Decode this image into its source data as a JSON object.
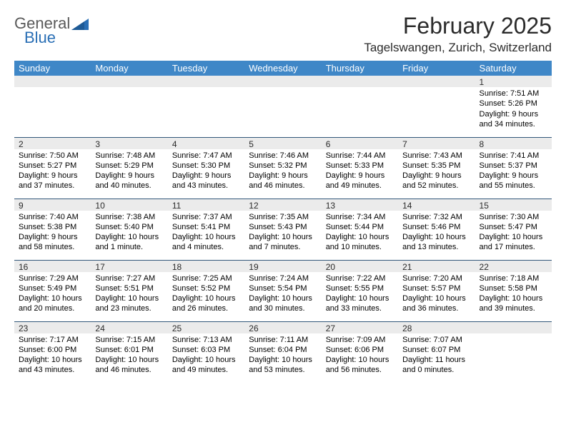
{
  "brand": {
    "line1": "General",
    "line2": "Blue"
  },
  "title": "February 2025",
  "location": "Tagelswangen, Zurich, Switzerland",
  "colors": {
    "header_bg": "#3f87c7",
    "header_fg": "#ffffff",
    "row_rule": "#32577a",
    "daynum_bg": "#ebebeb",
    "brand_gray": "#5a5a5a",
    "brand_blue": "#2a6fb5"
  },
  "weekdays": [
    "Sunday",
    "Monday",
    "Tuesday",
    "Wednesday",
    "Thursday",
    "Friday",
    "Saturday"
  ],
  "weeks": [
    [
      {
        "n": "",
        "lines": []
      },
      {
        "n": "",
        "lines": []
      },
      {
        "n": "",
        "lines": []
      },
      {
        "n": "",
        "lines": []
      },
      {
        "n": "",
        "lines": []
      },
      {
        "n": "",
        "lines": []
      },
      {
        "n": "1",
        "lines": [
          "Sunrise: 7:51 AM",
          "Sunset: 5:26 PM",
          "Daylight: 9 hours and 34 minutes."
        ]
      }
    ],
    [
      {
        "n": "2",
        "lines": [
          "Sunrise: 7:50 AM",
          "Sunset: 5:27 PM",
          "Daylight: 9 hours and 37 minutes."
        ]
      },
      {
        "n": "3",
        "lines": [
          "Sunrise: 7:48 AM",
          "Sunset: 5:29 PM",
          "Daylight: 9 hours and 40 minutes."
        ]
      },
      {
        "n": "4",
        "lines": [
          "Sunrise: 7:47 AM",
          "Sunset: 5:30 PM",
          "Daylight: 9 hours and 43 minutes."
        ]
      },
      {
        "n": "5",
        "lines": [
          "Sunrise: 7:46 AM",
          "Sunset: 5:32 PM",
          "Daylight: 9 hours and 46 minutes."
        ]
      },
      {
        "n": "6",
        "lines": [
          "Sunrise: 7:44 AM",
          "Sunset: 5:33 PM",
          "Daylight: 9 hours and 49 minutes."
        ]
      },
      {
        "n": "7",
        "lines": [
          "Sunrise: 7:43 AM",
          "Sunset: 5:35 PM",
          "Daylight: 9 hours and 52 minutes."
        ]
      },
      {
        "n": "8",
        "lines": [
          "Sunrise: 7:41 AM",
          "Sunset: 5:37 PM",
          "Daylight: 9 hours and 55 minutes."
        ]
      }
    ],
    [
      {
        "n": "9",
        "lines": [
          "Sunrise: 7:40 AM",
          "Sunset: 5:38 PM",
          "Daylight: 9 hours and 58 minutes."
        ]
      },
      {
        "n": "10",
        "lines": [
          "Sunrise: 7:38 AM",
          "Sunset: 5:40 PM",
          "Daylight: 10 hours and 1 minute."
        ]
      },
      {
        "n": "11",
        "lines": [
          "Sunrise: 7:37 AM",
          "Sunset: 5:41 PM",
          "Daylight: 10 hours and 4 minutes."
        ]
      },
      {
        "n": "12",
        "lines": [
          "Sunrise: 7:35 AM",
          "Sunset: 5:43 PM",
          "Daylight: 10 hours and 7 minutes."
        ]
      },
      {
        "n": "13",
        "lines": [
          "Sunrise: 7:34 AM",
          "Sunset: 5:44 PM",
          "Daylight: 10 hours and 10 minutes."
        ]
      },
      {
        "n": "14",
        "lines": [
          "Sunrise: 7:32 AM",
          "Sunset: 5:46 PM",
          "Daylight: 10 hours and 13 minutes."
        ]
      },
      {
        "n": "15",
        "lines": [
          "Sunrise: 7:30 AM",
          "Sunset: 5:47 PM",
          "Daylight: 10 hours and 17 minutes."
        ]
      }
    ],
    [
      {
        "n": "16",
        "lines": [
          "Sunrise: 7:29 AM",
          "Sunset: 5:49 PM",
          "Daylight: 10 hours and 20 minutes."
        ]
      },
      {
        "n": "17",
        "lines": [
          "Sunrise: 7:27 AM",
          "Sunset: 5:51 PM",
          "Daylight: 10 hours and 23 minutes."
        ]
      },
      {
        "n": "18",
        "lines": [
          "Sunrise: 7:25 AM",
          "Sunset: 5:52 PM",
          "Daylight: 10 hours and 26 minutes."
        ]
      },
      {
        "n": "19",
        "lines": [
          "Sunrise: 7:24 AM",
          "Sunset: 5:54 PM",
          "Daylight: 10 hours and 30 minutes."
        ]
      },
      {
        "n": "20",
        "lines": [
          "Sunrise: 7:22 AM",
          "Sunset: 5:55 PM",
          "Daylight: 10 hours and 33 minutes."
        ]
      },
      {
        "n": "21",
        "lines": [
          "Sunrise: 7:20 AM",
          "Sunset: 5:57 PM",
          "Daylight: 10 hours and 36 minutes."
        ]
      },
      {
        "n": "22",
        "lines": [
          "Sunrise: 7:18 AM",
          "Sunset: 5:58 PM",
          "Daylight: 10 hours and 39 minutes."
        ]
      }
    ],
    [
      {
        "n": "23",
        "lines": [
          "Sunrise: 7:17 AM",
          "Sunset: 6:00 PM",
          "Daylight: 10 hours and 43 minutes."
        ]
      },
      {
        "n": "24",
        "lines": [
          "Sunrise: 7:15 AM",
          "Sunset: 6:01 PM",
          "Daylight: 10 hours and 46 minutes."
        ]
      },
      {
        "n": "25",
        "lines": [
          "Sunrise: 7:13 AM",
          "Sunset: 6:03 PM",
          "Daylight: 10 hours and 49 minutes."
        ]
      },
      {
        "n": "26",
        "lines": [
          "Sunrise: 7:11 AM",
          "Sunset: 6:04 PM",
          "Daylight: 10 hours and 53 minutes."
        ]
      },
      {
        "n": "27",
        "lines": [
          "Sunrise: 7:09 AM",
          "Sunset: 6:06 PM",
          "Daylight: 10 hours and 56 minutes."
        ]
      },
      {
        "n": "28",
        "lines": [
          "Sunrise: 7:07 AM",
          "Sunset: 6:07 PM",
          "Daylight: 11 hours and 0 minutes."
        ]
      },
      {
        "n": "",
        "lines": []
      }
    ]
  ]
}
